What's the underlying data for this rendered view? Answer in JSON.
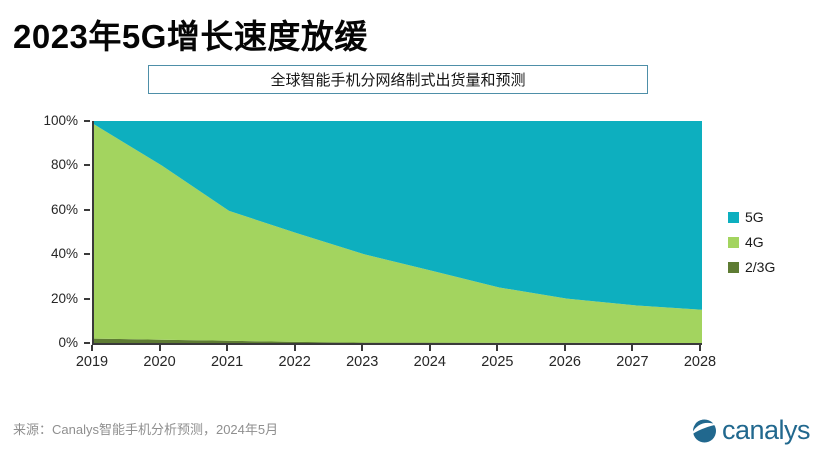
{
  "header": {
    "title": "2023年5G增长速度放缓"
  },
  "chart": {
    "subtitle": "全球智能手机分网络制式出货量和预测"
  },
  "chart_data": {
    "type": "area",
    "stacked": true,
    "title": "全球智能手机分网络制式出货量和预测",
    "x": [
      2019,
      2020,
      2021,
      2022,
      2023,
      2024,
      2025,
      2026,
      2027,
      2028
    ],
    "unit": "%",
    "ylim": [
      0,
      100
    ],
    "yticks": [
      0,
      20,
      40,
      60,
      80,
      100
    ],
    "grid": false,
    "legend_position": "right",
    "axis_color": "#3A3A3A",
    "series": [
      {
        "name": "5G",
        "color": "#0DAFBF",
        "values": [
          1.5,
          20,
          40.5,
          50.5,
          60,
          67.5,
          75,
          80,
          83,
          85
        ]
      },
      {
        "name": "4G",
        "color": "#A3D45F",
        "values": [
          96.5,
          78.5,
          58.5,
          49,
          39.8,
          32.3,
          24.9,
          19.9,
          17,
          15
        ]
      },
      {
        "name": "2/3G",
        "color": "#5E7C33",
        "values": [
          2,
          1.5,
          1,
          0.5,
          0.2,
          0.2,
          0.1,
          0.1,
          0,
          0
        ]
      }
    ]
  },
  "footer": {
    "source": "来源：Canalys智能手机分析预测，2024年5月",
    "logo_text": "canalys",
    "logo_color": "#21688E"
  }
}
